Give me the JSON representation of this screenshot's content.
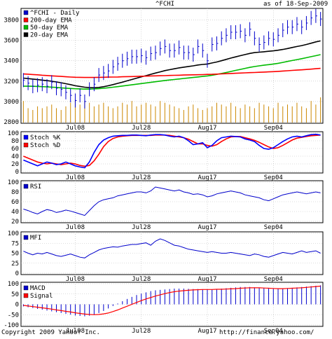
{
  "header": {
    "symbol": "^FCHI",
    "as_of": "as of 18-Sep-2009"
  },
  "footer": {
    "copyright": "Copyright 2009 Yahoo! Inc.",
    "url": "http://finance.yahoo.com/"
  },
  "colors": {
    "price": "#0000cc",
    "ema200": "#ff0000",
    "ema50": "#00bb00",
    "ema20": "#000000",
    "volume": "#cc8800",
    "stochK": "#0000ff",
    "stochD": "#ff0000",
    "rsi": "#0000cc",
    "mfi": "#0000cc",
    "macd": "#0000cc",
    "signal": "#ff0000",
    "grid": "#bbbbbb"
  },
  "chart_data": [
    {
      "type": "line",
      "name": "price",
      "ylim": [
        2800,
        3900
      ],
      "yticks": [
        2800,
        3000,
        3200,
        3400,
        3600,
        3800
      ],
      "x": [
        "2009-06-23",
        "2009-06-24",
        "2009-06-25",
        "2009-06-26",
        "2009-06-29",
        "2009-06-30",
        "2009-07-01",
        "2009-07-02",
        "2009-07-03",
        "2009-07-06",
        "2009-07-07",
        "2009-07-08",
        "2009-07-09",
        "2009-07-10",
        "2009-07-13",
        "2009-07-14",
        "2009-07-15",
        "2009-07-16",
        "2009-07-17",
        "2009-07-20",
        "2009-07-21",
        "2009-07-22",
        "2009-07-23",
        "2009-07-24",
        "2009-07-27",
        "2009-07-28",
        "2009-07-29",
        "2009-07-30",
        "2009-07-31",
        "2009-08-03",
        "2009-08-04",
        "2009-08-05",
        "2009-08-06",
        "2009-08-07",
        "2009-08-10",
        "2009-08-11",
        "2009-08-12",
        "2009-08-13",
        "2009-08-14",
        "2009-08-17",
        "2009-08-18",
        "2009-08-19",
        "2009-08-20",
        "2009-08-21",
        "2009-08-24",
        "2009-08-25",
        "2009-08-26",
        "2009-08-27",
        "2009-08-28",
        "2009-08-31",
        "2009-09-01",
        "2009-09-02",
        "2009-09-03",
        "2009-09-04",
        "2009-09-07",
        "2009-09-08",
        "2009-09-09",
        "2009-09-10",
        "2009-09-11",
        "2009-09-14",
        "2009-09-15",
        "2009-09-16",
        "2009-09-17",
        "2009-09-18"
      ],
      "xticklabels": [
        {
          "date": "2009-07-08",
          "label": "Jul08"
        },
        {
          "date": "2009-07-28",
          "label": "Jul28"
        },
        {
          "date": "2009-08-17",
          "label": "Aug17"
        },
        {
          "date": "2009-09-04",
          "label": "Sep04"
        }
      ],
      "series": [
        {
          "name": "^FCHI - Daily",
          "style": "ohlc",
          "values": [
            3210,
            3180,
            3150,
            3160,
            3170,
            3150,
            3190,
            3130,
            3120,
            3090,
            3060,
            3010,
            3060,
            3000,
            3120,
            3170,
            3260,
            3280,
            3300,
            3340,
            3370,
            3400,
            3420,
            3440,
            3440,
            3450,
            3430,
            3470,
            3480,
            3520,
            3540,
            3500,
            3500,
            3530,
            3480,
            3480,
            3460,
            3540,
            3500,
            3400,
            3560,
            3570,
            3620,
            3650,
            3680,
            3680,
            3690,
            3650,
            3710,
            3620,
            3560,
            3580,
            3620,
            3610,
            3650,
            3700,
            3730,
            3730,
            3760,
            3730,
            3770,
            3820,
            3840,
            3810
          ]
        },
        {
          "name": "200-day EMA",
          "values": [
            3270,
            3268,
            3265,
            3262,
            3258,
            3255,
            3252,
            3249,
            3246,
            3243,
            3240,
            3238,
            3237,
            3236,
            3236,
            3236,
            3237,
            3238,
            3239,
            3240,
            3241,
            3243,
            3244,
            3245,
            3246,
            3248,
            3249,
            3251,
            3252,
            3253,
            3254,
            3256,
            3257,
            3258,
            3260,
            3261,
            3262,
            3263,
            3264,
            3266,
            3267,
            3269,
            3271,
            3273,
            3275,
            3277,
            3279,
            3281,
            3283,
            3285,
            3287,
            3289,
            3291,
            3293,
            3296,
            3299,
            3302,
            3305,
            3308,
            3311,
            3314,
            3318,
            3322,
            3325
          ]
        },
        {
          "name": "50-day EMA",
          "values": [
            3150,
            3150,
            3149,
            3148,
            3146,
            3144,
            3141,
            3138,
            3134,
            3131,
            3128,
            3125,
            3124,
            3122,
            3122,
            3123,
            3126,
            3130,
            3135,
            3140,
            3146,
            3152,
            3158,
            3164,
            3170,
            3176,
            3182,
            3188,
            3194,
            3200,
            3206,
            3211,
            3216,
            3221,
            3226,
            3231,
            3236,
            3241,
            3246,
            3251,
            3258,
            3266,
            3275,
            3285,
            3295,
            3305,
            3315,
            3325,
            3335,
            3343,
            3350,
            3356,
            3362,
            3368,
            3375,
            3384,
            3393,
            3402,
            3411,
            3420,
            3430,
            3440,
            3450,
            3460
          ]
        },
        {
          "name": "20-day EMA",
          "values": [
            3230,
            3225,
            3220,
            3215,
            3210,
            3205,
            3199,
            3192,
            3184,
            3175,
            3166,
            3155,
            3148,
            3140,
            3136,
            3135,
            3138,
            3145,
            3155,
            3166,
            3178,
            3190,
            3203,
            3216,
            3229,
            3242,
            3254,
            3267,
            3279,
            3291,
            3303,
            3312,
            3321,
            3330,
            3337,
            3344,
            3350,
            3358,
            3364,
            3368,
            3378,
            3388,
            3400,
            3413,
            3426,
            3438,
            3450,
            3461,
            3472,
            3480,
            3484,
            3488,
            3493,
            3497,
            3503,
            3511,
            3520,
            3530,
            3540,
            3549,
            3560,
            3572,
            3585,
            3595
          ]
        }
      ],
      "volume": [
        60,
        40,
        35,
        45,
        40,
        45,
        50,
        40,
        35,
        45,
        55,
        65,
        50,
        60,
        55,
        45,
        50,
        55,
        45,
        40,
        45,
        55,
        50,
        60,
        45,
        50,
        55,
        50,
        45,
        60,
        55,
        50,
        45,
        40,
        35,
        45,
        50,
        40,
        35,
        40,
        45,
        55,
        50,
        45,
        55,
        45,
        40,
        50,
        45,
        40,
        55,
        50,
        45,
        40,
        55,
        45,
        50,
        45,
        55,
        45,
        40,
        60,
        50,
        70
      ]
    },
    {
      "type": "line",
      "name": "stochastic",
      "ylim": [
        0,
        100
      ],
      "yticks": [
        0,
        20,
        40,
        60,
        80,
        100
      ],
      "series": [
        {
          "name": "Stoch %K",
          "values": [
            30,
            25,
            20,
            15,
            20,
            25,
            22,
            18,
            20,
            25,
            20,
            15,
            12,
            10,
            25,
            50,
            70,
            82,
            88,
            92,
            93,
            94,
            94,
            95,
            95,
            94,
            93,
            95,
            96,
            96,
            95,
            92,
            90,
            92,
            88,
            80,
            70,
            72,
            75,
            62,
            68,
            80,
            88,
            90,
            92,
            91,
            90,
            85,
            82,
            78,
            68,
            60,
            58,
            62,
            70,
            78,
            85,
            90,
            92,
            90,
            93,
            96,
            97,
            95
          ]
        },
        {
          "name": "Stoch %D",
          "values": [
            40,
            35,
            30,
            25,
            22,
            20,
            22,
            20,
            18,
            20,
            22,
            20,
            16,
            14,
            16,
            28,
            45,
            65,
            78,
            86,
            90,
            92,
            93,
            94,
            94,
            94,
            94,
            94,
            95,
            95,
            95,
            94,
            92,
            90,
            88,
            84,
            78,
            72,
            72,
            68,
            66,
            70,
            78,
            85,
            90,
            91,
            91,
            88,
            85,
            81,
            76,
            70,
            64,
            60,
            62,
            68,
            75,
            82,
            87,
            89,
            91,
            93,
            94,
            95
          ]
        }
      ]
    },
    {
      "type": "line",
      "name": "rsi",
      "ylim": [
        20,
        100
      ],
      "yticks": [
        20,
        40,
        60,
        80,
        100
      ],
      "series": [
        {
          "name": "RSI",
          "values": [
            45,
            42,
            38,
            35,
            40,
            44,
            42,
            38,
            40,
            43,
            41,
            38,
            35,
            32,
            42,
            52,
            60,
            64,
            66,
            68,
            72,
            74,
            76,
            78,
            80,
            80,
            78,
            82,
            90,
            88,
            86,
            84,
            82,
            84,
            80,
            78,
            75,
            76,
            74,
            70,
            72,
            76,
            78,
            80,
            82,
            80,
            78,
            74,
            72,
            70,
            68,
            64,
            62,
            66,
            70,
            74,
            76,
            78,
            80,
            78,
            76,
            78,
            80,
            78
          ]
        }
      ]
    },
    {
      "type": "line",
      "name": "mfi",
      "ylim": [
        0,
        100
      ],
      "yticks": [
        0,
        25,
        50,
        75,
        100
      ],
      "series": [
        {
          "name": "MFI",
          "values": [
            55,
            50,
            46,
            50,
            48,
            52,
            48,
            44,
            42,
            45,
            48,
            44,
            40,
            38,
            46,
            52,
            58,
            62,
            64,
            66,
            65,
            68,
            70,
            72,
            72,
            74,
            76,
            70,
            80,
            86,
            82,
            76,
            70,
            68,
            64,
            60,
            58,
            56,
            54,
            52,
            54,
            52,
            50,
            50,
            52,
            50,
            48,
            46,
            44,
            48,
            46,
            42,
            40,
            44,
            48,
            52,
            50,
            48,
            52,
            56,
            52,
            54,
            56,
            50
          ]
        }
      ]
    },
    {
      "type": "line",
      "name": "macd",
      "ylim": [
        -100,
        100
      ],
      "yticks": [
        -100,
        -50,
        0,
        50,
        100
      ],
      "series": [
        {
          "name": "MACD",
          "values": [
            -10,
            -14,
            -18,
            -22,
            -26,
            -30,
            -34,
            -38,
            -42,
            -46,
            -50,
            -54,
            -56,
            -58,
            -55,
            -50,
            -42,
            -32,
            -20,
            -8,
            4,
            15,
            26,
            36,
            45,
            52,
            58,
            64,
            68,
            70,
            72,
            74,
            76,
            76,
            76,
            75,
            74,
            74,
            73,
            72,
            72,
            74,
            76,
            78,
            80,
            82,
            84,
            84,
            84,
            82,
            80,
            78,
            76,
            75,
            75,
            76,
            78,
            80,
            82,
            84,
            86,
            88,
            90,
            92
          ]
        },
        {
          "name": "Signal",
          "values": [
            -5,
            -8,
            -11,
            -14,
            -17,
            -20,
            -23,
            -27,
            -30,
            -34,
            -37,
            -41,
            -44,
            -47,
            -49,
            -50,
            -49,
            -46,
            -42,
            -35,
            -27,
            -18,
            -9,
            0,
            9,
            18,
            26,
            33,
            40,
            46,
            52,
            57,
            61,
            64,
            66,
            68,
            70,
            71,
            72,
            72,
            72,
            73,
            73,
            74,
            75,
            76,
            78,
            79,
            80,
            80,
            80,
            79,
            78,
            77,
            76,
            76,
            77,
            78,
            79,
            80,
            82,
            84,
            86,
            88
          ]
        }
      ]
    }
  ]
}
